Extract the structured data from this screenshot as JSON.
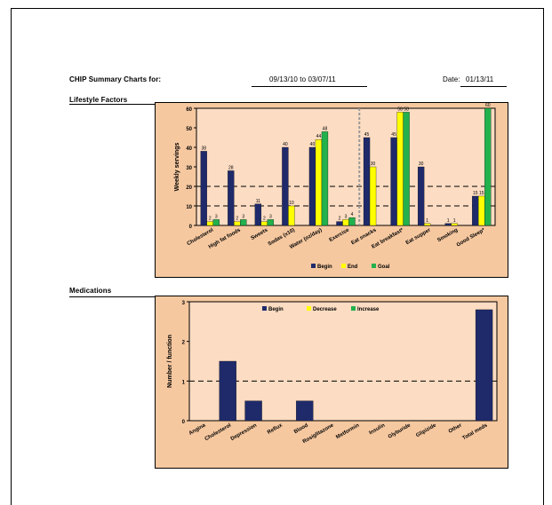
{
  "report": {
    "title": "CHIP Summary Charts for:",
    "date_range": "09/13/10 to 03/07/11",
    "date_label": "Date:",
    "date_value": "01/13/11"
  },
  "sections": {
    "lifestyle": "Lifestyle Factors",
    "medications": "Medications"
  },
  "colors": {
    "begin": "#1f2a6b",
    "end": "#ffff00",
    "goal": "#22b14c",
    "panel_bg": "#f6c8a0",
    "plot_bg": "#fcdcc2"
  },
  "chart_data": [
    {
      "type": "bar",
      "ylabel": "Weekly servings",
      "ylim": [
        0,
        60
      ],
      "yticks": [
        "0",
        "10",
        "20",
        "30",
        "40",
        "50",
        "60"
      ],
      "categories": [
        "Cholesterol",
        "High fat foods",
        "Sweets",
        "Sodas (x10)",
        "Water (oz/day)",
        "Exercise",
        "Eat snacks",
        "Eat breakfast*",
        "Eat supper",
        "Smoking",
        "Good Sleep*"
      ],
      "series": [
        {
          "name": "Begin",
          "values": [
            38,
            28,
            11,
            40,
            40,
            2,
            45,
            45,
            30,
            1,
            15
          ]
        },
        {
          "name": "End",
          "values": [
            2,
            2,
            2,
            10,
            44,
            3,
            30,
            58,
            1,
            1,
            15
          ]
        },
        {
          "name": "Goal",
          "values": [
            3,
            3,
            3,
            0,
            48,
            4,
            0,
            58,
            0,
            0,
            60
          ]
        }
      ],
      "grid": "dashed lines at 10 and 20",
      "legend": "bottom",
      "separator_after_index": 5
    },
    {
      "type": "bar",
      "ylabel": "Number / function",
      "ylim": [
        0,
        3
      ],
      "yticks": [
        "0",
        "1",
        "2",
        "3"
      ],
      "categories": [
        "Angina",
        "Cholesterol",
        "Depression",
        "Reflux",
        "Blood",
        "Rosiglitazone",
        "Metformin",
        "Insulin",
        "Glyburide",
        "Glipizide",
        "Other",
        "Total meds"
      ],
      "series": [
        {
          "name": "Begin",
          "values": [
            0,
            1.5,
            0.5,
            0,
            0.5,
            0,
            0,
            0,
            0,
            0,
            0,
            2.8
          ]
        },
        {
          "name": "Decrease",
          "values": [
            0,
            0,
            0,
            0,
            0,
            0,
            0,
            0,
            0,
            0,
            0,
            0
          ]
        },
        {
          "name": "Increase",
          "values": [
            0,
            0,
            0,
            0,
            0,
            0,
            0,
            0,
            0,
            0,
            0,
            0
          ]
        }
      ],
      "grid": "dashed line at 1",
      "legend": "top"
    }
  ]
}
